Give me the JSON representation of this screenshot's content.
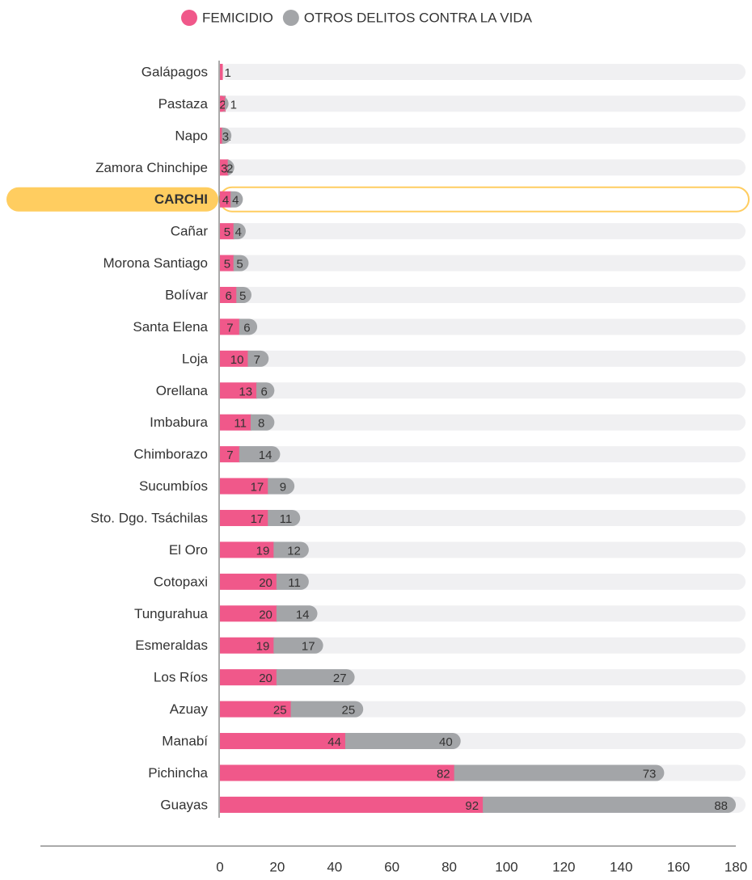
{
  "chart_data": {
    "type": "stacked_barh",
    "categories": [
      "Galápagos",
      "Pastaza",
      "Napo",
      "Zamora Chinchipe",
      "CARCHI",
      "Cañar",
      "Morona Santiago",
      "Bolívar",
      "Santa Elena",
      "Loja",
      "Orellana",
      "Imbabura",
      "Chimborazo",
      "Sucumbíos",
      "Sto. Dgo. Tsáchilas",
      "El Oro",
      "Cotopaxi",
      "Tungurahua",
      "Esmeraldas",
      "Los Ríos",
      "Azuay",
      "Manabí",
      "Pichincha",
      "Guayas"
    ],
    "series": [
      {
        "name": "FEMICIDIO",
        "color": "#f0588a",
        "values": [
          1,
          2,
          1,
          3,
          4,
          5,
          5,
          6,
          7,
          10,
          13,
          11,
          7,
          17,
          17,
          19,
          20,
          20,
          19,
          20,
          25,
          44,
          82,
          92
        ]
      },
      {
        "name": "OTROS DELITOS CONTRA LA VIDA",
        "color": "#a3a5a8",
        "values": [
          null,
          1,
          3,
          2,
          4,
          4,
          5,
          5,
          6,
          7,
          6,
          8,
          14,
          9,
          11,
          12,
          11,
          14,
          17,
          27,
          25,
          40,
          73,
          88
        ]
      }
    ],
    "highlight": "CARCHI",
    "xlim": [
      0,
      180
    ],
    "xticks": [
      0,
      20,
      40,
      60,
      80,
      100,
      120,
      140,
      160,
      180
    ],
    "legend": "top"
  }
}
